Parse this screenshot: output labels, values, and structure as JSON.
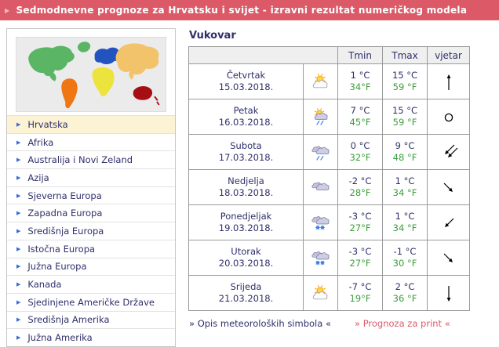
{
  "topbar": {
    "bullet": "▶",
    "title": "Sedmodnevne prognoze za Hrvatsku i svijet - izravni rezultat numeričkog modela"
  },
  "sidebar": {
    "map": "world-map-continents",
    "regions": [
      {
        "label": "Hrvatska",
        "selected": true
      },
      {
        "label": "Afrika",
        "selected": false
      },
      {
        "label": "Australija i Novi Zeland",
        "selected": false
      },
      {
        "label": "Azija",
        "selected": false
      },
      {
        "label": "Sjeverna Europa",
        "selected": false
      },
      {
        "label": "Zapadna Europa",
        "selected": false
      },
      {
        "label": "Središnja Europa",
        "selected": false
      },
      {
        "label": "Istočna Europa",
        "selected": false
      },
      {
        "label": "Južna Europa",
        "selected": false
      },
      {
        "label": "Kanada",
        "selected": false
      },
      {
        "label": "Sjedinjene Američke Države",
        "selected": false
      },
      {
        "label": "Središnja Amerika",
        "selected": false
      },
      {
        "label": "Južna Amerika",
        "selected": false
      }
    ]
  },
  "forecast": {
    "city": "Vukovar",
    "columns": {
      "tmin": "Tmin",
      "tmax": "Tmax",
      "wind": "vjetar"
    },
    "days": [
      {
        "day": "Četvrtak",
        "date": "15.03.2018.",
        "icon": "sun-cloud",
        "tmin_c": "1 °C",
        "tmin_f": "34°F",
        "tmax_c": "15 °C",
        "tmax_f": "59 °F",
        "wind": "up"
      },
      {
        "day": "Petak",
        "date": "16.03.2018.",
        "icon": "sun-cloud-rain",
        "tmin_c": "7 °C",
        "tmin_f": "45°F",
        "tmax_c": "15 °C",
        "tmax_f": "59 °F",
        "wind": "calm"
      },
      {
        "day": "Subota",
        "date": "17.03.2018.",
        "icon": "clouds-rain",
        "tmin_c": "0 °C",
        "tmin_f": "32°F",
        "tmax_c": "9 °C",
        "tmax_f": "48 °F",
        "wind": "down-left-double"
      },
      {
        "day": "Nedjelja",
        "date": "18.03.2018.",
        "icon": "clouds",
        "tmin_c": "-2 °C",
        "tmin_f": "28°F",
        "tmax_c": "1 °C",
        "tmax_f": "34 °F",
        "wind": "down-right"
      },
      {
        "day": "Ponedjeljak",
        "date": "19.03.2018.",
        "icon": "clouds-snow",
        "tmin_c": "-3 °C",
        "tmin_f": "27°F",
        "tmax_c": "1 °C",
        "tmax_f": "34 °F",
        "wind": "down-left"
      },
      {
        "day": "Utorak",
        "date": "20.03.2018.",
        "icon": "clouds-snow",
        "tmin_c": "-3 °C",
        "tmin_f": "27°F",
        "tmax_c": "-1 °C",
        "tmax_f": "30 °F",
        "wind": "down-right"
      },
      {
        "day": "Srijeda",
        "date": "21.03.2018.",
        "icon": "sun-cloud",
        "tmin_c": "-7 °C",
        "tmin_f": "19°F",
        "tmax_c": "2 °C",
        "tmax_f": "36 °F",
        "wind": "down"
      }
    ]
  },
  "footer_links": {
    "symbols": "» Opis meteoroloških simbola «",
    "print": "» Prognoza za print «"
  },
  "colors": {
    "accent_red": "#dc5a68",
    "navy_text": "#2f2f6b",
    "fahrenheit_green": "#3a9e3a",
    "selected_cream": "#fcf3d4",
    "map_background": "#ebebeb"
  }
}
